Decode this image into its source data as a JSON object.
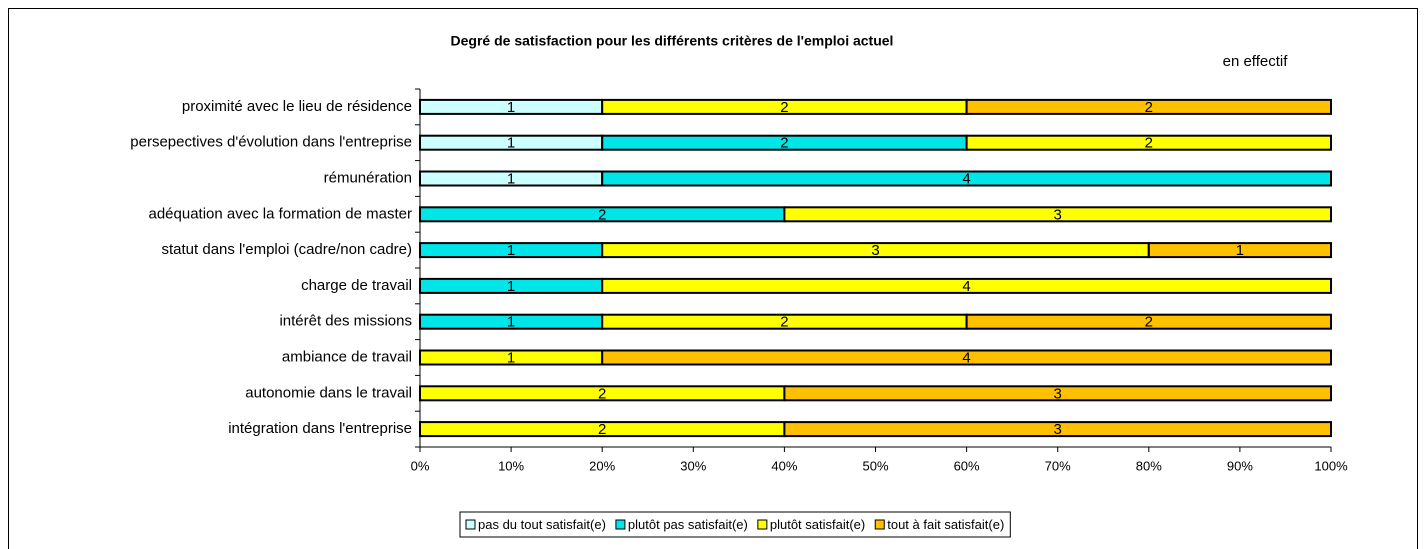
{
  "chart_data": {
    "type": "bar",
    "orientation": "horizontal",
    "stacking": "percent",
    "title": "Degré de satisfaction pour les différents critères de l'emploi actuel",
    "subtitle": "en effectif",
    "categories": [
      "proximité avec le lieu de résidence",
      "persepectives d'évolution dans l'entreprise",
      "rémunération",
      "adéquation avec la formation de master",
      "statut dans l'emploi (cadre/non cadre)",
      "charge de travail",
      "intérêt des missions",
      "ambiance de travail",
      "autonomie dans le travail",
      "intégration dans l'entreprise"
    ],
    "series": [
      {
        "name": "pas du tout satisfait(e)",
        "color": "#ccffff",
        "values": [
          1,
          1,
          1,
          null,
          null,
          null,
          null,
          null,
          null,
          null
        ]
      },
      {
        "name": "plutôt pas satisfait(e)",
        "color": "#00e5e8",
        "values": [
          null,
          2,
          4,
          2,
          1,
          1,
          1,
          null,
          null,
          null
        ]
      },
      {
        "name": "plutôt satisfait(e)",
        "color": "#ffff00",
        "values": [
          2,
          2,
          null,
          3,
          3,
          4,
          2,
          1,
          2,
          2
        ]
      },
      {
        "name": "tout à fait satisfait(e)",
        "color": "#ffc000",
        "values": [
          2,
          null,
          null,
          null,
          1,
          null,
          2,
          4,
          3,
          3
        ]
      }
    ],
    "xlim": [
      0,
      100
    ],
    "xticks": [
      {
        "value": 0,
        "label": "0%"
      },
      {
        "value": 10,
        "label": "10%"
      },
      {
        "value": 20,
        "label": "20%"
      },
      {
        "value": 30,
        "label": "30%"
      },
      {
        "value": 40,
        "label": "40%"
      },
      {
        "value": 50,
        "label": "50%"
      },
      {
        "value": 60,
        "label": "60%"
      },
      {
        "value": 70,
        "label": "70%"
      },
      {
        "value": 80,
        "label": "80%"
      },
      {
        "value": 90,
        "label": "90%"
      },
      {
        "value": 100,
        "label": "100%"
      }
    ],
    "legend": "bottom",
    "grid": false
  }
}
